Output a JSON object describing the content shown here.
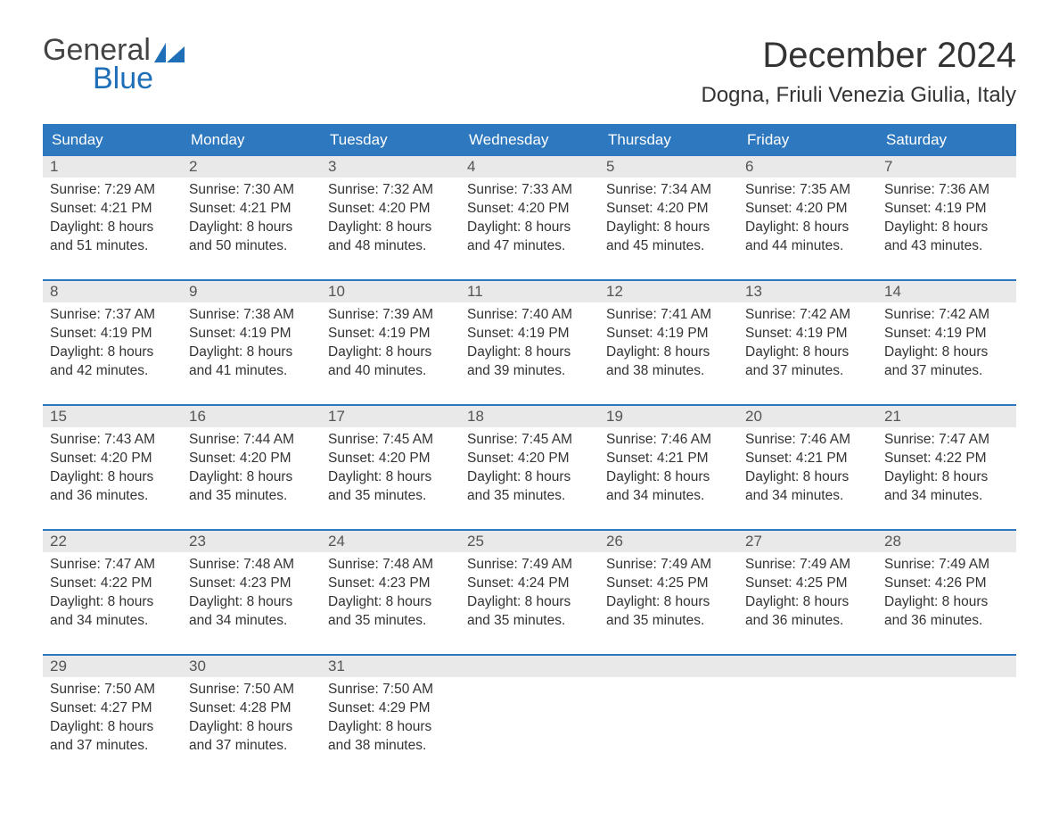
{
  "logo": {
    "line1": "General",
    "line2": "Blue"
  },
  "title": "December 2024",
  "location": "Dogna, Friuli Venezia Giulia, Italy",
  "colors": {
    "header_bg": "#2d78bf",
    "header_text": "#ffffff",
    "week_border": "#2d78bf",
    "daynum_bg": "#e9e9e9",
    "text": "#333333",
    "logo_gray": "#444444",
    "logo_blue": "#1e6fb8",
    "page_bg": "#ffffff"
  },
  "typography": {
    "title_fontsize": 40,
    "location_fontsize": 24,
    "dow_fontsize": 17,
    "body_fontsize": 15.5
  },
  "days_of_week": [
    "Sunday",
    "Monday",
    "Tuesday",
    "Wednesday",
    "Thursday",
    "Friday",
    "Saturday"
  ],
  "weeks": [
    [
      {
        "n": "1",
        "sunrise": "Sunrise: 7:29 AM",
        "sunset": "Sunset: 4:21 PM",
        "d1": "Daylight: 8 hours",
        "d2": "and 51 minutes."
      },
      {
        "n": "2",
        "sunrise": "Sunrise: 7:30 AM",
        "sunset": "Sunset: 4:21 PM",
        "d1": "Daylight: 8 hours",
        "d2": "and 50 minutes."
      },
      {
        "n": "3",
        "sunrise": "Sunrise: 7:32 AM",
        "sunset": "Sunset: 4:20 PM",
        "d1": "Daylight: 8 hours",
        "d2": "and 48 minutes."
      },
      {
        "n": "4",
        "sunrise": "Sunrise: 7:33 AM",
        "sunset": "Sunset: 4:20 PM",
        "d1": "Daylight: 8 hours",
        "d2": "and 47 minutes."
      },
      {
        "n": "5",
        "sunrise": "Sunrise: 7:34 AM",
        "sunset": "Sunset: 4:20 PM",
        "d1": "Daylight: 8 hours",
        "d2": "and 45 minutes."
      },
      {
        "n": "6",
        "sunrise": "Sunrise: 7:35 AM",
        "sunset": "Sunset: 4:20 PM",
        "d1": "Daylight: 8 hours",
        "d2": "and 44 minutes."
      },
      {
        "n": "7",
        "sunrise": "Sunrise: 7:36 AM",
        "sunset": "Sunset: 4:19 PM",
        "d1": "Daylight: 8 hours",
        "d2": "and 43 minutes."
      }
    ],
    [
      {
        "n": "8",
        "sunrise": "Sunrise: 7:37 AM",
        "sunset": "Sunset: 4:19 PM",
        "d1": "Daylight: 8 hours",
        "d2": "and 42 minutes."
      },
      {
        "n": "9",
        "sunrise": "Sunrise: 7:38 AM",
        "sunset": "Sunset: 4:19 PM",
        "d1": "Daylight: 8 hours",
        "d2": "and 41 minutes."
      },
      {
        "n": "10",
        "sunrise": "Sunrise: 7:39 AM",
        "sunset": "Sunset: 4:19 PM",
        "d1": "Daylight: 8 hours",
        "d2": "and 40 minutes."
      },
      {
        "n": "11",
        "sunrise": "Sunrise: 7:40 AM",
        "sunset": "Sunset: 4:19 PM",
        "d1": "Daylight: 8 hours",
        "d2": "and 39 minutes."
      },
      {
        "n": "12",
        "sunrise": "Sunrise: 7:41 AM",
        "sunset": "Sunset: 4:19 PM",
        "d1": "Daylight: 8 hours",
        "d2": "and 38 minutes."
      },
      {
        "n": "13",
        "sunrise": "Sunrise: 7:42 AM",
        "sunset": "Sunset: 4:19 PM",
        "d1": "Daylight: 8 hours",
        "d2": "and 37 minutes."
      },
      {
        "n": "14",
        "sunrise": "Sunrise: 7:42 AM",
        "sunset": "Sunset: 4:19 PM",
        "d1": "Daylight: 8 hours",
        "d2": "and 37 minutes."
      }
    ],
    [
      {
        "n": "15",
        "sunrise": "Sunrise: 7:43 AM",
        "sunset": "Sunset: 4:20 PM",
        "d1": "Daylight: 8 hours",
        "d2": "and 36 minutes."
      },
      {
        "n": "16",
        "sunrise": "Sunrise: 7:44 AM",
        "sunset": "Sunset: 4:20 PM",
        "d1": "Daylight: 8 hours",
        "d2": "and 35 minutes."
      },
      {
        "n": "17",
        "sunrise": "Sunrise: 7:45 AM",
        "sunset": "Sunset: 4:20 PM",
        "d1": "Daylight: 8 hours",
        "d2": "and 35 minutes."
      },
      {
        "n": "18",
        "sunrise": "Sunrise: 7:45 AM",
        "sunset": "Sunset: 4:20 PM",
        "d1": "Daylight: 8 hours",
        "d2": "and 35 minutes."
      },
      {
        "n": "19",
        "sunrise": "Sunrise: 7:46 AM",
        "sunset": "Sunset: 4:21 PM",
        "d1": "Daylight: 8 hours",
        "d2": "and 34 minutes."
      },
      {
        "n": "20",
        "sunrise": "Sunrise: 7:46 AM",
        "sunset": "Sunset: 4:21 PM",
        "d1": "Daylight: 8 hours",
        "d2": "and 34 minutes."
      },
      {
        "n": "21",
        "sunrise": "Sunrise: 7:47 AM",
        "sunset": "Sunset: 4:22 PM",
        "d1": "Daylight: 8 hours",
        "d2": "and 34 minutes."
      }
    ],
    [
      {
        "n": "22",
        "sunrise": "Sunrise: 7:47 AM",
        "sunset": "Sunset: 4:22 PM",
        "d1": "Daylight: 8 hours",
        "d2": "and 34 minutes."
      },
      {
        "n": "23",
        "sunrise": "Sunrise: 7:48 AM",
        "sunset": "Sunset: 4:23 PM",
        "d1": "Daylight: 8 hours",
        "d2": "and 34 minutes."
      },
      {
        "n": "24",
        "sunrise": "Sunrise: 7:48 AM",
        "sunset": "Sunset: 4:23 PM",
        "d1": "Daylight: 8 hours",
        "d2": "and 35 minutes."
      },
      {
        "n": "25",
        "sunrise": "Sunrise: 7:49 AM",
        "sunset": "Sunset: 4:24 PM",
        "d1": "Daylight: 8 hours",
        "d2": "and 35 minutes."
      },
      {
        "n": "26",
        "sunrise": "Sunrise: 7:49 AM",
        "sunset": "Sunset: 4:25 PM",
        "d1": "Daylight: 8 hours",
        "d2": "and 35 minutes."
      },
      {
        "n": "27",
        "sunrise": "Sunrise: 7:49 AM",
        "sunset": "Sunset: 4:25 PM",
        "d1": "Daylight: 8 hours",
        "d2": "and 36 minutes."
      },
      {
        "n": "28",
        "sunrise": "Sunrise: 7:49 AM",
        "sunset": "Sunset: 4:26 PM",
        "d1": "Daylight: 8 hours",
        "d2": "and 36 minutes."
      }
    ],
    [
      {
        "n": "29",
        "sunrise": "Sunrise: 7:50 AM",
        "sunset": "Sunset: 4:27 PM",
        "d1": "Daylight: 8 hours",
        "d2": "and 37 minutes."
      },
      {
        "n": "30",
        "sunrise": "Sunrise: 7:50 AM",
        "sunset": "Sunset: 4:28 PM",
        "d1": "Daylight: 8 hours",
        "d2": "and 37 minutes."
      },
      {
        "n": "31",
        "sunrise": "Sunrise: 7:50 AM",
        "sunset": "Sunset: 4:29 PM",
        "d1": "Daylight: 8 hours",
        "d2": "and 38 minutes."
      },
      null,
      null,
      null,
      null
    ]
  ]
}
